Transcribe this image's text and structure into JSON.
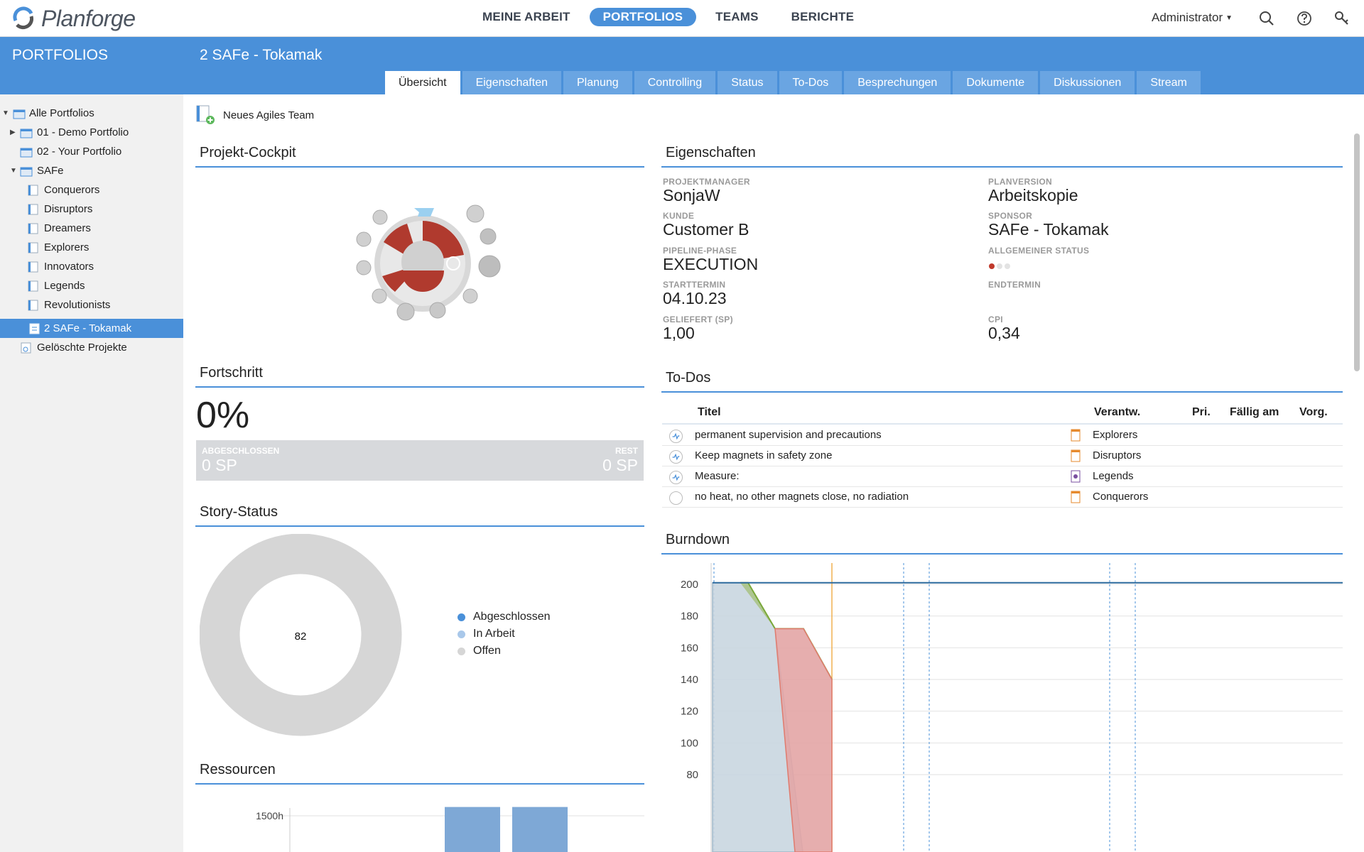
{
  "app": {
    "name": "Planforge"
  },
  "topnav": [
    {
      "label": "MEINE ARBEIT",
      "active": false
    },
    {
      "label": "PORTFOLIOS",
      "active": true
    },
    {
      "label": "TEAMS",
      "active": false
    },
    {
      "label": "BERICHTE",
      "active": false
    }
  ],
  "user": {
    "name": "Administrator"
  },
  "sidebar": {
    "title": "PORTFOLIOS",
    "items": [
      {
        "label": "Alle Portfolios",
        "expanded": true
      },
      {
        "label": "01 - Demo Portfolio",
        "expanded": false
      },
      {
        "label": "02 - Your Portfolio"
      },
      {
        "label": "SAFe",
        "expanded": true
      },
      {
        "label": "Conquerors"
      },
      {
        "label": "Disruptors"
      },
      {
        "label": "Dreamers"
      },
      {
        "label": "Explorers"
      },
      {
        "label": "Innovators"
      },
      {
        "label": "Legends"
      },
      {
        "label": "Revolutionists"
      },
      {
        "label": "2 SAFe - Tokamak",
        "selected": true
      },
      {
        "label": "Gelöschte Projekte"
      }
    ]
  },
  "project": {
    "title": "2 SAFe - Tokamak",
    "tabs": [
      "Übersicht",
      "Eigenschaften",
      "Planung",
      "Controlling",
      "Status",
      "To-Dos",
      "Besprechungen",
      "Dokumente",
      "Diskussionen",
      "Stream"
    ],
    "active_tab": "Übersicht"
  },
  "toolbar": {
    "new_team": "Neues Agiles Team"
  },
  "panels": {
    "cockpit": "Projekt-Cockpit",
    "progress": "Fortschritt",
    "story_status": "Story-Status",
    "resources": "Ressourcen",
    "properties": "Eigenschaften",
    "todos": "To-Dos",
    "burndown": "Burndown"
  },
  "properties": {
    "projektmanager": {
      "label": "PROJEKTMANAGER",
      "value": "SonjaW"
    },
    "planversion": {
      "label": "PLANVERSION",
      "value": "Arbeitskopie"
    },
    "kunde": {
      "label": "KUNDE",
      "value": "Customer B"
    },
    "sponsor": {
      "label": "SPONSOR",
      "value": "SAFe - Tokamak"
    },
    "pipeline": {
      "label": "PIPELINE-PHASE",
      "value": "EXECUTION"
    },
    "status": {
      "label": "ALLGEMEINER STATUS",
      "value": "red"
    },
    "start": {
      "label": "STARTTERMIN",
      "value": "04.10.23"
    },
    "end": {
      "label": "ENDTERMIN",
      "value": ""
    },
    "delivered": {
      "label": "GELIEFERT (SP)",
      "value": "1,00"
    },
    "cpi": {
      "label": "CPI",
      "value": "0,34"
    }
  },
  "progress": {
    "percent": "0%",
    "done_label": "ABGESCHLOSSEN",
    "done_value": "0 SP",
    "rest_label": "REST",
    "rest_value": "0 SP"
  },
  "story_status": {
    "center_value": "82",
    "legend": [
      {
        "label": "Abgeschlossen",
        "color": "#4a90d9"
      },
      {
        "label": "In Arbeit",
        "color": "#a9c8ea"
      },
      {
        "label": "Offen",
        "color": "#d6d6d6"
      }
    ]
  },
  "todos": {
    "headers": {
      "title": "Titel",
      "owner": "Verantw.",
      "priority": "Pri.",
      "due": "Fällig am",
      "prev": "Vorg."
    },
    "rows": [
      {
        "title": "permanent supervision and precautions",
        "owner": "Explorers",
        "status": "in-progress"
      },
      {
        "title": "Keep magnets in safety zone",
        "owner": "Disruptors",
        "status": "in-progress"
      },
      {
        "title": "Measure:",
        "owner": "Legends",
        "status": "in-progress"
      },
      {
        "title": "no heat, no other magnets close, no radiation",
        "owner": "Conquerors",
        "status": "open"
      }
    ]
  },
  "chart_data": [
    {
      "type": "area",
      "title": "Burndown",
      "y_ticks": [
        200,
        180,
        160,
        140,
        120,
        100,
        80
      ],
      "series": [
        {
          "name": "",
          "color": "#c9d6e0",
          "x": [
            0,
            1,
            2,
            3
          ],
          "values": [
            201,
            201,
            172,
            0
          ]
        },
        {
          "name": "",
          "color": "#a6c17c",
          "x": [
            1,
            2,
            3,
            4,
            5
          ],
          "values": [
            201,
            201,
            172,
            172,
            140
          ]
        },
        {
          "name": "",
          "color": "#e3a5a5",
          "x": [
            3,
            4,
            5,
            5
          ],
          "values": [
            172,
            172,
            140,
            0
          ]
        }
      ],
      "reference_line": 201,
      "grid": true
    },
    {
      "type": "bar",
      "title": "Ressourcen",
      "y_ticks": [
        "1500h"
      ],
      "values": [
        1560,
        1560
      ],
      "color": "#7ea8d6"
    }
  ]
}
